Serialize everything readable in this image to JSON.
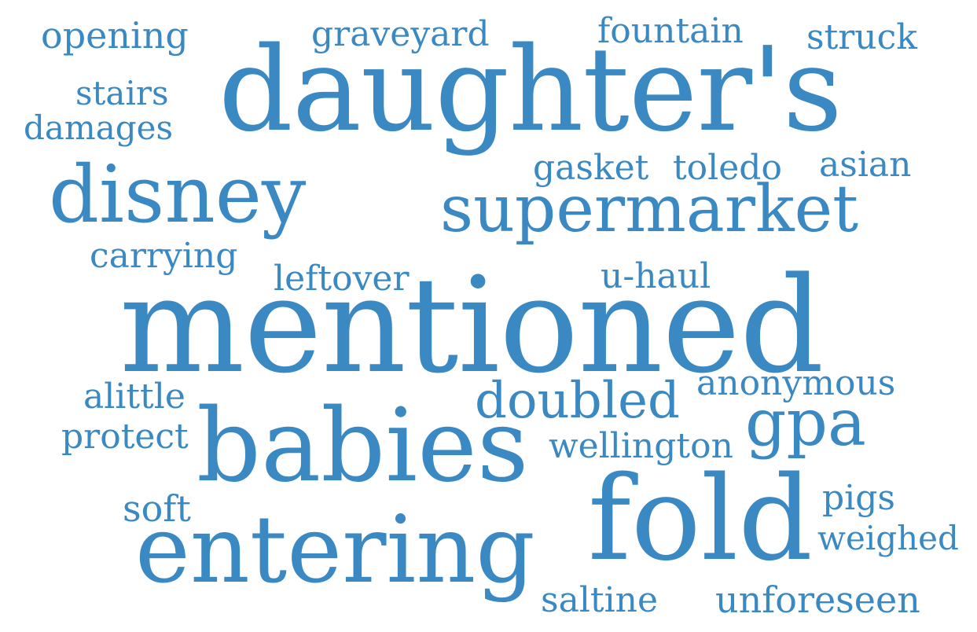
{
  "theme": {
    "word_color": "#3a89c2",
    "background": "#ffffff"
  },
  "words": {
    "opening": "opening",
    "graveyard": "graveyard",
    "fountain": "fountain",
    "struck": "struck",
    "daughters": "daughter's",
    "stairs": "stairs",
    "damages": "damages",
    "gasket": "gasket",
    "toledo": "toledo",
    "asian": "asian",
    "disney": "disney",
    "supermarket": "supermarket",
    "carrying": "carrying",
    "leftover": "leftover",
    "uhaul": "u-haul",
    "mentioned": "mentioned",
    "anonymous": "anonymous",
    "alittle": "alittle",
    "doubled": "doubled",
    "gpa": "gpa",
    "protect": "protect",
    "wellington": "wellington",
    "babies": "babies",
    "fold": "fold",
    "pigs": "pigs",
    "soft": "soft",
    "weighed": "weighed",
    "entering": "entering",
    "saltine": "saltine",
    "unforeseen": "unforeseen"
  }
}
